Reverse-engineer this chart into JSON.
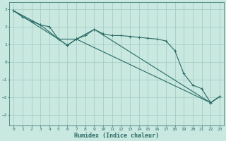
{
  "xlabel": "Humidex (Indice chaleur)",
  "bg_color": "#c8e8e0",
  "grid_color": "#a0c8c0",
  "line_color": "#2a6b65",
  "xlim": [
    -0.5,
    23.5
  ],
  "ylim": [
    -3.6,
    3.4
  ],
  "yticks": [
    -3,
    -2,
    -1,
    0,
    1,
    2,
    3
  ],
  "xticks": [
    0,
    1,
    2,
    3,
    4,
    5,
    6,
    7,
    8,
    9,
    10,
    11,
    12,
    13,
    14,
    15,
    16,
    17,
    18,
    19,
    20,
    21,
    22,
    23
  ],
  "line1_x": [
    0,
    1,
    2,
    3,
    4,
    5,
    6,
    7,
    8,
    9,
    10,
    11,
    12,
    13,
    14,
    15,
    16,
    17,
    18,
    19,
    20,
    21,
    22,
    23
  ],
  "line1_y": [
    2.9,
    2.55,
    2.3,
    2.1,
    2.0,
    1.3,
    0.95,
    1.3,
    1.5,
    1.85,
    1.6,
    1.5,
    1.5,
    1.45,
    1.4,
    1.35,
    1.3,
    1.2,
    0.65,
    -0.65,
    -1.3,
    -1.5,
    -2.3,
    -1.95
  ],
  "line2_x": [
    0,
    3,
    5,
    6,
    7,
    9,
    22,
    23
  ],
  "line2_y": [
    2.9,
    2.1,
    1.3,
    0.95,
    1.3,
    1.85,
    -2.3,
    -1.95
  ],
  "line3_x": [
    0,
    5,
    7,
    22,
    23
  ],
  "line3_y": [
    2.9,
    1.3,
    1.3,
    -2.3,
    -1.95
  ]
}
